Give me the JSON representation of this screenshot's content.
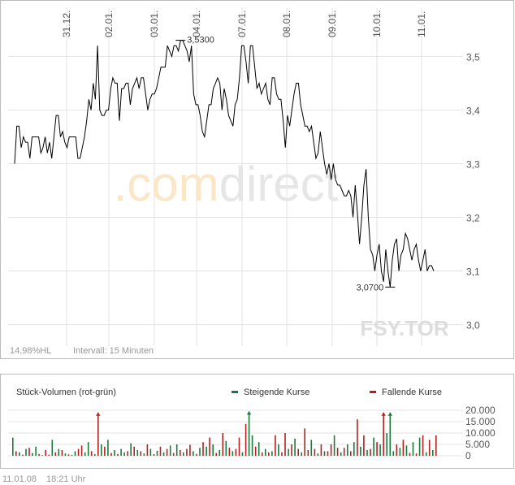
{
  "chart_data": [
    {
      "type": "line",
      "symbol_watermark": "FSY.TOR",
      "brand_watermark": ".comdirect",
      "info_left": "14,98%HL",
      "info_interval": "Intervall: 15 Minuten",
      "high_label": "3,5300",
      "low_label": "3,0700",
      "x_ticks": [
        "31.12.",
        "02.01.",
        "03.01.",
        "04.01.",
        "07.01.",
        "08.01.",
        "09.01.",
        "10.01.",
        "11.01."
      ],
      "y_ticks": [
        "3,5",
        "3,4",
        "3,3",
        "3,2",
        "3,1",
        "3,0"
      ],
      "ylim": [
        2.96,
        3.59
      ],
      "grid": true,
      "series": [
        {
          "values": [
            3.3,
            3.37,
            3.37,
            3.33,
            3.35,
            3.34,
            3.34,
            3.31,
            3.35,
            3.35,
            3.35,
            3.35,
            3.32,
            3.33,
            3.35,
            3.32,
            3.34,
            3.31,
            3.35,
            3.39,
            3.39,
            3.35,
            3.36,
            3.34,
            3.33,
            3.35,
            3.35,
            3.35,
            3.35,
            3.31,
            3.31,
            3.33,
            3.35,
            3.38,
            3.42,
            3.4,
            3.45,
            3.42,
            3.52,
            3.4,
            3.39,
            3.39,
            3.4,
            3.4,
            3.44,
            3.46,
            3.45,
            3.45,
            3.38,
            3.44,
            3.44,
            3.45,
            3.45,
            3.41,
            3.44,
            3.45,
            3.46,
            3.44,
            3.46,
            3.46,
            3.43,
            3.4,
            3.42,
            3.43,
            3.43,
            3.44,
            3.46,
            3.48,
            3.48,
            3.48,
            3.52,
            3.51,
            3.5,
            3.52,
            3.52,
            3.51,
            3.53,
            3.53,
            3.52,
            3.51,
            3.49,
            3.52,
            3.43,
            3.41,
            3.41,
            3.39,
            3.36,
            3.35,
            3.38,
            3.41,
            3.41,
            3.44,
            3.45,
            3.46,
            3.45,
            3.4,
            3.44,
            3.42,
            3.39,
            3.38,
            3.37,
            3.41,
            3.42,
            3.46,
            3.52,
            3.52,
            3.49,
            3.45,
            3.52,
            3.52,
            3.48,
            3.44,
            3.45,
            3.43,
            3.44,
            3.45,
            3.42,
            3.41,
            3.46,
            3.46,
            3.43,
            3.42,
            3.42,
            3.38,
            3.33,
            3.39,
            3.37,
            3.4,
            3.43,
            3.45,
            3.45,
            3.41,
            3.39,
            3.37,
            3.37,
            3.36,
            3.37,
            3.34,
            3.31,
            3.32,
            3.36,
            3.33,
            3.3,
            3.28,
            3.3,
            3.27,
            3.3,
            3.27,
            3.26,
            3.26,
            3.25,
            3.24,
            3.24,
            3.25,
            3.24,
            3.2,
            3.26,
            3.21,
            3.15,
            3.2,
            3.26,
            3.29,
            3.2,
            3.14,
            3.13,
            3.1,
            3.13,
            3.15,
            3.1,
            3.08,
            3.14,
            3.1,
            3.07,
            3.12,
            3.15,
            3.16,
            3.1,
            3.13,
            3.14,
            3.17,
            3.16,
            3.14,
            3.12,
            3.14,
            3.15,
            3.12,
            3.1,
            3.12,
            3.14,
            3.1,
            3.11,
            3.11,
            3.1
          ]
        }
      ]
    },
    {
      "type": "bar",
      "title": "Stück-Volumen (rot-grün)",
      "legend_up": "Steigende Kurse",
      "legend_down": "Fallende Kurse",
      "color_up": "#1a7a3c",
      "color_down": "#b52020",
      "y_ticks": [
        "20.000",
        "15.000",
        "10.000",
        "5.000",
        "0"
      ],
      "ylim": [
        0,
        20000
      ],
      "values": [
        8000,
        2000,
        1500,
        500,
        3000,
        3500,
        1200,
        4000,
        800,
        300,
        2500,
        500,
        7000,
        1500,
        3000,
        2500,
        1000,
        600,
        400,
        2000,
        3000,
        4500,
        1500,
        6000,
        2000,
        700,
        19000,
        5000,
        4000,
        7000,
        1200,
        2500,
        800,
        3000,
        1500,
        2000,
        5500,
        4000,
        2500,
        2000,
        1000,
        5000,
        3000,
        700,
        2200,
        4000,
        1500,
        3000,
        4500,
        1200,
        5000,
        2500,
        1500,
        3000,
        4800,
        2000,
        800,
        3500,
        6000,
        4000,
        8000,
        5000,
        1200,
        2500,
        10000,
        6500,
        3500,
        2000,
        3000,
        8000,
        1500,
        14000,
        19500,
        9000,
        4000,
        6000,
        1500,
        3000,
        1500,
        2000,
        9000,
        5000,
        1500,
        10000,
        3000,
        5000,
        7500,
        3000,
        1500,
        12000,
        2500,
        7000,
        3000,
        1000,
        5000,
        2000,
        2000,
        5000,
        9000,
        3500,
        1500,
        3500,
        5000,
        2000,
        6000,
        16000,
        4000,
        9000,
        2500,
        3000,
        8000,
        6000,
        5000,
        19000,
        10000,
        19000,
        2000,
        5000,
        3500,
        7000,
        4500,
        1200,
        6000,
        1000,
        8000,
        9000,
        1500,
        7000,
        2500,
        9000
      ],
      "directions": [
        "u",
        "d",
        "u",
        "d",
        "u",
        "d",
        "u",
        "u",
        "d",
        "u",
        "d",
        "d",
        "u",
        "d",
        "u",
        "d",
        "u",
        "d",
        "u",
        "u",
        "d",
        "d",
        "u",
        "u",
        "d",
        "u",
        "d",
        "u",
        "d",
        "u",
        "d",
        "u",
        "d",
        "u",
        "u",
        "d",
        "u",
        "d",
        "u",
        "d",
        "u",
        "d",
        "u",
        "d",
        "u",
        "d",
        "u",
        "d",
        "u",
        "d",
        "u",
        "d",
        "u",
        "d",
        "d",
        "u",
        "d",
        "u",
        "d",
        "u",
        "d",
        "u",
        "d",
        "u",
        "d",
        "u",
        "d",
        "u",
        "d",
        "d",
        "u",
        "d",
        "u",
        "u",
        "d",
        "u",
        "d",
        "u",
        "d",
        "u",
        "d",
        "u",
        "d",
        "d",
        "u",
        "d",
        "u",
        "d",
        "u",
        "d",
        "d",
        "u",
        "d",
        "u",
        "d",
        "u",
        "d",
        "d",
        "u",
        "d",
        "u",
        "d",
        "u",
        "d",
        "u",
        "d",
        "u",
        "d",
        "u",
        "d",
        "u",
        "d",
        "u",
        "d",
        "u",
        "u",
        "u",
        "d",
        "u",
        "d",
        "u",
        "d",
        "u",
        "d",
        "u",
        "d",
        "u",
        "d",
        "u",
        "d"
      ]
    }
  ],
  "footer": {
    "date": "11.01.08",
    "time": "18:21 Uhr"
  }
}
